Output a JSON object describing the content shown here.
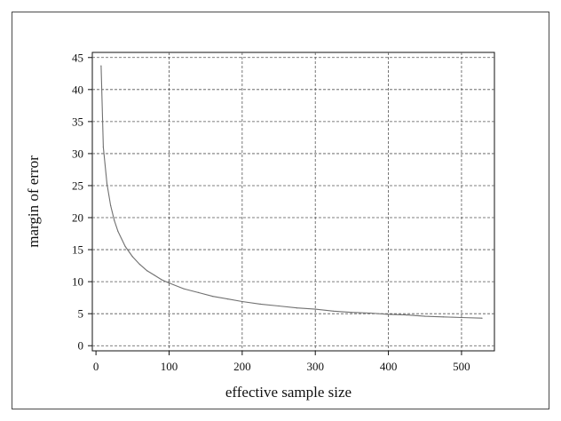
{
  "chart_data": {
    "type": "line",
    "title": "",
    "xlabel": "effective sample size",
    "ylabel": "margin of error",
    "xlim": [
      -5,
      545
    ],
    "ylim": [
      -0.8,
      45.8
    ],
    "xticks": [
      0,
      100,
      200,
      300,
      400,
      500
    ],
    "yticks": [
      0,
      5,
      10,
      15,
      20,
      25,
      30,
      35,
      40,
      45
    ],
    "grid": true,
    "grid_style": "dashed",
    "line_color": "#707070",
    "series": [
      {
        "x": [
          7,
          10,
          15,
          20,
          25,
          30,
          40,
          50,
          60,
          70,
          80,
          90,
          100,
          120,
          140,
          160,
          180,
          200,
          225,
          250,
          275,
          300,
          325,
          350,
          375,
          400,
          425,
          450,
          475,
          500,
          528
        ],
        "values": [
          43.7,
          31.0,
          25.3,
          21.9,
          19.6,
          17.9,
          15.5,
          13.9,
          12.7,
          11.7,
          11.0,
          10.3,
          9.8,
          8.9,
          8.3,
          7.7,
          7.3,
          6.9,
          6.5,
          6.2,
          5.9,
          5.7,
          5.4,
          5.2,
          5.1,
          4.9,
          4.8,
          4.6,
          4.5,
          4.4,
          4.3
        ]
      }
    ]
  }
}
